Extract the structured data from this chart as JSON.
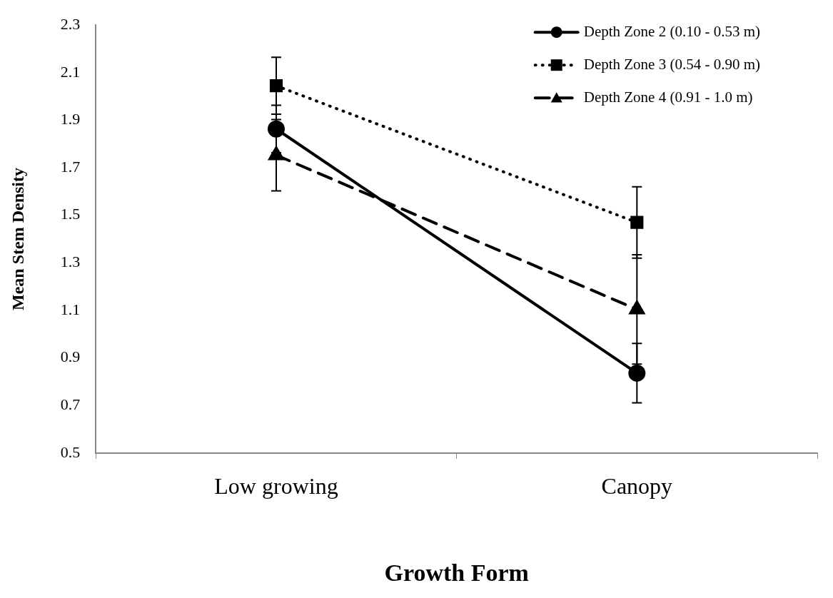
{
  "chart_data": {
    "type": "line",
    "xlabel": "Growth Form",
    "ylabel": "Mean Stem Density",
    "categories": [
      "Low growing",
      "Canopy"
    ],
    "series": [
      {
        "name": "Depth Zone 2 (0.10 - 0.53 m)",
        "color": "#000000",
        "values": [
          1.863,
          0.836
        ],
        "errors": [
          0.1,
          0.125
        ],
        "marker": "circle",
        "line_style": "solid"
      },
      {
        "name": "Depth Zone 3 (0.54 - 0.90 m)",
        "color": "#000000",
        "values": [
          2.045,
          1.47
        ],
        "errors": [
          0.12,
          0.15
        ],
        "marker": "square",
        "line_style": "dotted"
      },
      {
        "name": "Depth Zone 4 (0.91 - 1.0 m)",
        "color": "#000000",
        "values": [
          1.753,
          1.104
        ],
        "errors": [
          0.15,
          0.23
        ],
        "marker": "triangle",
        "line_style": "dashed"
      }
    ],
    "ylim": [
      0.5,
      2.3
    ],
    "yticks": [
      0.5,
      0.7,
      0.9,
      1.1,
      1.3,
      1.5,
      1.7,
      1.9,
      2.1,
      2.3
    ],
    "legend": "top right"
  }
}
